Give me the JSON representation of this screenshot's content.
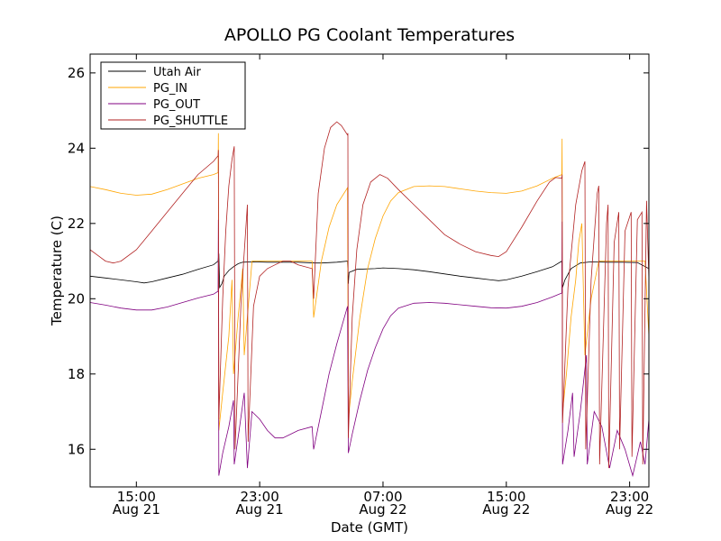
{
  "chart_data": {
    "type": "line",
    "title": "APOLLO PG Coolant Temperatures",
    "xlabel": "Date (GMT)",
    "ylabel": "Temperature (C)",
    "x_unit": "hours since Aug 21 00:00 GMT",
    "xlim": [
      12,
      48.25
    ],
    "ylim": [
      15,
      26.5
    ],
    "x_ticks": [
      {
        "value": 15,
        "time": "15:00",
        "date": "Aug 21"
      },
      {
        "value": 23,
        "time": "23:00",
        "date": "Aug 21"
      },
      {
        "value": 31,
        "time": "07:00",
        "date": "Aug 22"
      },
      {
        "value": 39,
        "time": "15:00",
        "date": "Aug 22"
      },
      {
        "value": 47,
        "time": "23:00",
        "date": "Aug 22"
      }
    ],
    "y_ticks": [
      16,
      18,
      20,
      22,
      24,
      26
    ],
    "legend_position": "top-left",
    "series": [
      {
        "name": "Utah Air",
        "color": "#000000",
        "points": [
          [
            12,
            20.6
          ],
          [
            13,
            20.55
          ],
          [
            14,
            20.5
          ],
          [
            15,
            20.45
          ],
          [
            15.5,
            20.42
          ],
          [
            16,
            20.45
          ],
          [
            17,
            20.55
          ],
          [
            18,
            20.65
          ],
          [
            19,
            20.78
          ],
          [
            20,
            20.9
          ],
          [
            20.3,
            21.0
          ],
          [
            20.35,
            21.2
          ],
          [
            20.4,
            20.3
          ],
          [
            20.55,
            20.4
          ],
          [
            20.7,
            20.6
          ],
          [
            21,
            20.75
          ],
          [
            21.3,
            20.85
          ],
          [
            21.6,
            20.93
          ],
          [
            21.9,
            20.97
          ],
          [
            22.5,
            20.98
          ],
          [
            23.5,
            20.97
          ],
          [
            24.5,
            20.97
          ],
          [
            25.5,
            20.97
          ],
          [
            26.6,
            20.95
          ],
          [
            27,
            20.95
          ],
          [
            28,
            20.97
          ],
          [
            28.7,
            21.0
          ],
          [
            28.75,
            20.4
          ],
          [
            28.8,
            20.7
          ],
          [
            29.3,
            20.78
          ],
          [
            30.5,
            20.8
          ],
          [
            31,
            20.82
          ],
          [
            32,
            20.8
          ],
          [
            33,
            20.77
          ],
          [
            34,
            20.72
          ],
          [
            35,
            20.66
          ],
          [
            36,
            20.6
          ],
          [
            37,
            20.55
          ],
          [
            38,
            20.5
          ],
          [
            38.5,
            20.48
          ],
          [
            39,
            20.5
          ],
          [
            40,
            20.6
          ],
          [
            41,
            20.72
          ],
          [
            42,
            20.85
          ],
          [
            42.6,
            21.0
          ],
          [
            42.65,
            20.3
          ],
          [
            42.8,
            20.5
          ],
          [
            43.2,
            20.8
          ],
          [
            43.8,
            20.95
          ],
          [
            44.5,
            20.98
          ],
          [
            45.5,
            20.97
          ],
          [
            46.5,
            20.97
          ],
          [
            47.5,
            20.96
          ],
          [
            48.25,
            20.8
          ]
        ]
      },
      {
        "name": "PG_IN",
        "color": "#ffa500",
        "points": [
          [
            12,
            22.98
          ],
          [
            13,
            22.9
          ],
          [
            14,
            22.8
          ],
          [
            15,
            22.75
          ],
          [
            16,
            22.78
          ],
          [
            17,
            22.9
          ],
          [
            18,
            23.05
          ],
          [
            19,
            23.2
          ],
          [
            20,
            23.3
          ],
          [
            20.3,
            23.35
          ],
          [
            20.32,
            24.4
          ],
          [
            20.35,
            16.5
          ],
          [
            20.6,
            17.5
          ],
          [
            21,
            19.0
          ],
          [
            21.2,
            20.5
          ],
          [
            21.3,
            18.0
          ],
          [
            21.6,
            19.5
          ],
          [
            21.9,
            20.8
          ],
          [
            22.0,
            18.5
          ],
          [
            22.5,
            21.0
          ],
          [
            23,
            21.0
          ],
          [
            23.5,
            21.0
          ],
          [
            24,
            21.0
          ],
          [
            24.5,
            21.0
          ],
          [
            25,
            21.0
          ],
          [
            25.5,
            21.0
          ],
          [
            26,
            21.0
          ],
          [
            26.4,
            21.0
          ],
          [
            26.5,
            19.5
          ],
          [
            27,
            21.0
          ],
          [
            27.5,
            21.9
          ],
          [
            28,
            22.5
          ],
          [
            28.7,
            22.95
          ],
          [
            28.75,
            16.8
          ],
          [
            29,
            17.8
          ],
          [
            29.5,
            19.5
          ],
          [
            30,
            20.8
          ],
          [
            30.5,
            21.6
          ],
          [
            31,
            22.2
          ],
          [
            31.5,
            22.6
          ],
          [
            32,
            22.82
          ],
          [
            33,
            22.98
          ],
          [
            34,
            23.0
          ],
          [
            35,
            22.98
          ],
          [
            36,
            22.92
          ],
          [
            37,
            22.86
          ],
          [
            38,
            22.82
          ],
          [
            39,
            22.8
          ],
          [
            40,
            22.86
          ],
          [
            41,
            23.0
          ],
          [
            42,
            23.2
          ],
          [
            42.6,
            23.3
          ],
          [
            42.62,
            24.25
          ],
          [
            42.65,
            17.0
          ],
          [
            42.9,
            18.0
          ],
          [
            43.2,
            19.5
          ],
          [
            43.5,
            20.5
          ],
          [
            43.7,
            21.5
          ],
          [
            43.9,
            22.0
          ],
          [
            44.1,
            18.5
          ],
          [
            44.5,
            20.0
          ],
          [
            45,
            21.0
          ],
          [
            45.5,
            21.0
          ],
          [
            46,
            21.0
          ],
          [
            46.5,
            21.0
          ],
          [
            47,
            21.0
          ],
          [
            47.5,
            21.0
          ],
          [
            48,
            21.0
          ],
          [
            48.25,
            19.0
          ]
        ]
      },
      {
        "name": "PG_OUT",
        "color": "#800080",
        "points": [
          [
            12,
            19.9
          ],
          [
            13,
            19.83
          ],
          [
            14,
            19.75
          ],
          [
            15,
            19.7
          ],
          [
            16,
            19.7
          ],
          [
            17,
            19.78
          ],
          [
            18,
            19.9
          ],
          [
            19,
            20.02
          ],
          [
            20,
            20.12
          ],
          [
            20.3,
            20.2
          ],
          [
            20.32,
            22.1
          ],
          [
            20.35,
            15.3
          ],
          [
            20.6,
            15.9
          ],
          [
            21,
            16.6
          ],
          [
            21.3,
            17.3
          ],
          [
            21.35,
            15.6
          ],
          [
            21.7,
            16.6
          ],
          [
            22.0,
            17.5
          ],
          [
            22.2,
            15.5
          ],
          [
            22.5,
            17.0
          ],
          [
            23,
            16.8
          ],
          [
            23.5,
            16.5
          ],
          [
            24,
            16.3
          ],
          [
            24.5,
            16.3
          ],
          [
            25,
            16.4
          ],
          [
            25.5,
            16.5
          ],
          [
            26.4,
            16.6
          ],
          [
            26.5,
            16.0
          ],
          [
            27,
            17.0
          ],
          [
            27.5,
            18.0
          ],
          [
            28,
            18.8
          ],
          [
            28.7,
            19.8
          ],
          [
            28.75,
            15.9
          ],
          [
            29,
            16.4
          ],
          [
            29.5,
            17.3
          ],
          [
            30,
            18.1
          ],
          [
            30.5,
            18.7
          ],
          [
            31,
            19.2
          ],
          [
            31.5,
            19.55
          ],
          [
            32,
            19.75
          ],
          [
            33,
            19.88
          ],
          [
            34,
            19.9
          ],
          [
            35,
            19.88
          ],
          [
            36,
            19.84
          ],
          [
            37,
            19.8
          ],
          [
            38,
            19.76
          ],
          [
            39,
            19.75
          ],
          [
            40,
            19.8
          ],
          [
            41,
            19.9
          ],
          [
            42,
            20.05
          ],
          [
            42.6,
            20.15
          ],
          [
            42.62,
            22.05
          ],
          [
            42.65,
            15.6
          ],
          [
            43,
            16.5
          ],
          [
            43.3,
            17.5
          ],
          [
            43.4,
            15.8
          ],
          [
            43.8,
            17.0
          ],
          [
            44.2,
            18.5
          ],
          [
            44.25,
            15.6
          ],
          [
            44.7,
            17.0
          ],
          [
            45.2,
            16.6
          ],
          [
            45.7,
            15.5
          ],
          [
            46.2,
            16.5
          ],
          [
            46.7,
            16.0
          ],
          [
            47.2,
            15.3
          ],
          [
            47.7,
            16.2
          ],
          [
            48,
            15.6
          ],
          [
            48.25,
            16.8
          ]
        ]
      },
      {
        "name": "PG_SHUTTLE",
        "color": "#b22222",
        "points": [
          [
            12,
            21.3
          ],
          [
            12.5,
            21.15
          ],
          [
            13,
            21.0
          ],
          [
            13.5,
            20.95
          ],
          [
            14,
            21.0
          ],
          [
            15,
            21.3
          ],
          [
            16,
            21.8
          ],
          [
            17,
            22.3
          ],
          [
            18,
            22.8
          ],
          [
            19,
            23.3
          ],
          [
            20,
            23.65
          ],
          [
            20.3,
            23.8
          ],
          [
            20.32,
            23.95
          ],
          [
            20.35,
            16.8
          ],
          [
            20.6,
            20.0
          ],
          [
            20.8,
            21.8
          ],
          [
            21.0,
            23.0
          ],
          [
            21.2,
            23.7
          ],
          [
            21.35,
            24.05
          ],
          [
            21.4,
            16.0
          ],
          [
            21.8,
            20.0
          ],
          [
            22.2,
            22.5
          ],
          [
            22.25,
            16.2
          ],
          [
            22.6,
            19.8
          ],
          [
            23,
            20.6
          ],
          [
            23.5,
            20.8
          ],
          [
            24,
            20.9
          ],
          [
            24.5,
            21.0
          ],
          [
            25,
            21.0
          ],
          [
            25.5,
            20.9
          ],
          [
            26.4,
            20.8
          ],
          [
            26.5,
            20.0
          ],
          [
            26.8,
            22.8
          ],
          [
            27.2,
            24.0
          ],
          [
            27.6,
            24.55
          ],
          [
            28,
            24.7
          ],
          [
            28.3,
            24.6
          ],
          [
            28.7,
            24.35
          ],
          [
            28.72,
            24.4
          ],
          [
            28.75,
            16.3
          ],
          [
            29,
            19.5
          ],
          [
            29.3,
            21.3
          ],
          [
            29.7,
            22.5
          ],
          [
            30.2,
            23.1
          ],
          [
            30.8,
            23.3
          ],
          [
            31.3,
            23.2
          ],
          [
            32,
            22.9
          ],
          [
            33,
            22.5
          ],
          [
            34,
            22.1
          ],
          [
            35,
            21.7
          ],
          [
            36,
            21.45
          ],
          [
            37,
            21.25
          ],
          [
            38,
            21.15
          ],
          [
            38.5,
            21.12
          ],
          [
            39,
            21.25
          ],
          [
            40,
            21.9
          ],
          [
            41,
            22.6
          ],
          [
            41.8,
            23.1
          ],
          [
            42.2,
            23.22
          ],
          [
            42.6,
            23.2
          ],
          [
            42.62,
            23.3
          ],
          [
            42.65,
            16.7
          ],
          [
            43,
            20.3
          ],
          [
            43.5,
            22.5
          ],
          [
            43.9,
            23.4
          ],
          [
            44.1,
            23.65
          ],
          [
            44.15,
            16.0
          ],
          [
            44.5,
            20.5
          ],
          [
            44.9,
            22.8
          ],
          [
            45.0,
            23.0
          ],
          [
            45.05,
            15.6
          ],
          [
            45.5,
            22.0
          ],
          [
            45.6,
            22.5
          ],
          [
            45.65,
            15.5
          ],
          [
            46.0,
            21.5
          ],
          [
            46.3,
            22.3
          ],
          [
            46.35,
            16.0
          ],
          [
            46.7,
            21.8
          ],
          [
            47.1,
            22.3
          ],
          [
            47.15,
            15.8
          ],
          [
            47.5,
            22.1
          ],
          [
            47.8,
            22.3
          ],
          [
            47.85,
            15.6
          ],
          [
            48.1,
            22.6
          ],
          [
            48.25,
            20.5
          ]
        ]
      }
    ]
  }
}
